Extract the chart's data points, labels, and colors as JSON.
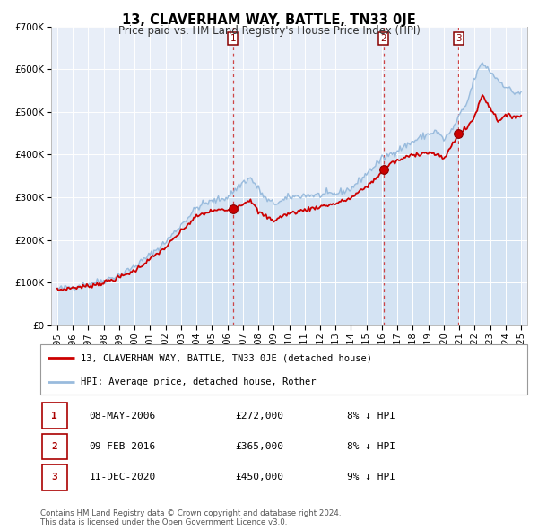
{
  "title": "13, CLAVERHAM WAY, BATTLE, TN33 0JE",
  "subtitle": "Price paid vs. HM Land Registry's House Price Index (HPI)",
  "hpi_label": "HPI: Average price, detached house, Rother",
  "property_label": "13, CLAVERHAM WAY, BATTLE, TN33 0JE (detached house)",
  "plot_bg": "#e8eef8",
  "hpi_color": "#99bbdd",
  "hpi_fill": "#c8ddf0",
  "price_color": "#cc0000",
  "vline_color": "#cc3333",
  "sales": [
    {
      "label": "1",
      "date_x": 2006.36,
      "price": 272000,
      "date_str": "08-MAY-2006",
      "price_str": "£272,000",
      "pct": "8%",
      "dir": "↓"
    },
    {
      "label": "2",
      "date_x": 2016.1,
      "price": 365000,
      "date_str": "09-FEB-2016",
      "price_str": "£365,000",
      "pct": "8%",
      "dir": "↓"
    },
    {
      "label": "3",
      "date_x": 2020.95,
      "price": 450000,
      "date_str": "11-DEC-2020",
      "price_str": "£450,000",
      "pct": "9%",
      "dir": "↓"
    }
  ],
  "ylim": [
    0,
    700000
  ],
  "xlim": [
    1994.6,
    2025.4
  ],
  "yticks": [
    0,
    100000,
    200000,
    300000,
    400000,
    500000,
    600000,
    700000
  ],
  "ytick_labels": [
    "£0",
    "£100K",
    "£200K",
    "£300K",
    "£400K",
    "£500K",
    "£600K",
    "£700K"
  ],
  "xticks": [
    1995,
    1996,
    1997,
    1998,
    1999,
    2000,
    2001,
    2002,
    2003,
    2004,
    2005,
    2006,
    2007,
    2008,
    2009,
    2010,
    2011,
    2012,
    2013,
    2014,
    2015,
    2016,
    2017,
    2018,
    2019,
    2020,
    2021,
    2022,
    2023,
    2024,
    2025
  ],
  "footer": "Contains HM Land Registry data © Crown copyright and database right 2024.\nThis data is licensed under the Open Government Licence v3.0.",
  "hpi_anchors_x": [
    1995.0,
    1996.0,
    1997.0,
    1998.0,
    1999.0,
    2000.0,
    2001.0,
    2002.0,
    2003.0,
    2004.0,
    2004.5,
    2005.0,
    2006.0,
    2007.0,
    2007.5,
    2008.5,
    2009.0,
    2009.5,
    2010.0,
    2011.0,
    2012.0,
    2013.0,
    2014.0,
    2015.0,
    2016.0,
    2017.0,
    2018.0,
    2018.5,
    2019.5,
    2020.0,
    2020.5,
    2021.0,
    2021.5,
    2022.0,
    2022.5,
    2023.0,
    2023.5,
    2024.0,
    2024.5,
    2025.0
  ],
  "hpi_anchors_y": [
    85000,
    90000,
    97000,
    105000,
    118000,
    138000,
    165000,
    195000,
    235000,
    275000,
    285000,
    290000,
    300000,
    335000,
    345000,
    295000,
    285000,
    290000,
    300000,
    305000,
    305000,
    308000,
    320000,
    355000,
    390000,
    410000,
    430000,
    440000,
    455000,
    435000,
    455000,
    490000,
    520000,
    580000,
    615000,
    595000,
    575000,
    560000,
    545000,
    545000
  ],
  "price_anchors_x": [
    1995.0,
    1996.0,
    1997.0,
    1998.0,
    1999.0,
    2000.0,
    2001.0,
    2002.0,
    2003.0,
    2004.0,
    2005.0,
    2005.5,
    2006.0,
    2006.36,
    2007.0,
    2007.5,
    2008.0,
    2009.0,
    2009.5,
    2010.0,
    2011.0,
    2012.0,
    2013.0,
    2014.0,
    2015.0,
    2015.5,
    2016.1,
    2016.5,
    2017.0,
    2018.0,
    2019.0,
    2019.5,
    2020.0,
    2020.5,
    2020.95,
    2021.5,
    2022.0,
    2022.5,
    2023.0,
    2023.5,
    2024.0,
    2024.5,
    2025.0
  ],
  "price_anchors_y": [
    82000,
    88000,
    92000,
    100000,
    112000,
    128000,
    155000,
    182000,
    220000,
    255000,
    268000,
    270000,
    270000,
    272000,
    285000,
    295000,
    265000,
    245000,
    255000,
    262000,
    270000,
    278000,
    285000,
    298000,
    325000,
    340000,
    365000,
    378000,
    385000,
    400000,
    405000,
    400000,
    390000,
    420000,
    450000,
    462000,
    490000,
    540000,
    510000,
    480000,
    490000,
    490000,
    490000
  ]
}
